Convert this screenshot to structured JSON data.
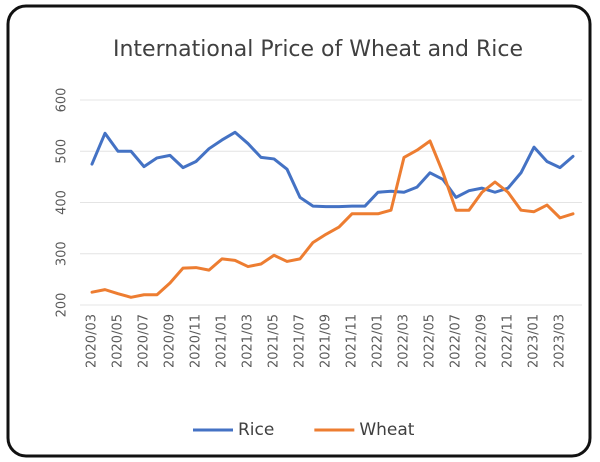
{
  "chart_data": {
    "type": "line",
    "title": "International Price of Wheat and Rice",
    "categories": [
      "2020/03",
      null,
      "2020/05",
      null,
      "2020/07",
      null,
      "2020/09",
      null,
      "2020/11",
      null,
      "2021/01",
      null,
      "2021/03",
      null,
      "2021/05",
      null,
      "2021/07",
      null,
      "2021/09",
      null,
      "2021/11",
      null,
      "2022/01",
      null,
      "2022/03",
      null,
      "2022/05",
      null,
      "2022/07",
      null,
      "2022/09",
      null,
      "2022/11",
      null,
      "2023/01",
      null,
      "2023/03",
      null
    ],
    "series": [
      {
        "name": "Rice",
        "color": "#4472c4",
        "values": [
          475,
          535,
          500,
          500,
          470,
          487,
          492,
          468,
          480,
          505,
          522,
          537,
          515,
          488,
          485,
          465,
          410,
          393,
          392,
          392,
          393,
          393,
          420,
          422,
          420,
          430,
          458,
          445,
          410,
          423,
          428,
          420,
          428,
          458,
          508,
          480,
          468,
          490
        ]
      },
      {
        "name": "Wheat",
        "color": "#ed7d31",
        "values": [
          225,
          230,
          222,
          215,
          220,
          220,
          243,
          272,
          273,
          268,
          290,
          287,
          275,
          280,
          297,
          285,
          290,
          322,
          338,
          352,
          378,
          378,
          378,
          385,
          488,
          502,
          520,
          458,
          385,
          385,
          420,
          440,
          420,
          385,
          382,
          395,
          370,
          378
        ]
      }
    ],
    "ylim": [
      200,
      600
    ],
    "yticks": [
      200,
      300,
      400,
      500,
      600
    ],
    "grid": true,
    "legend": "bottom"
  }
}
